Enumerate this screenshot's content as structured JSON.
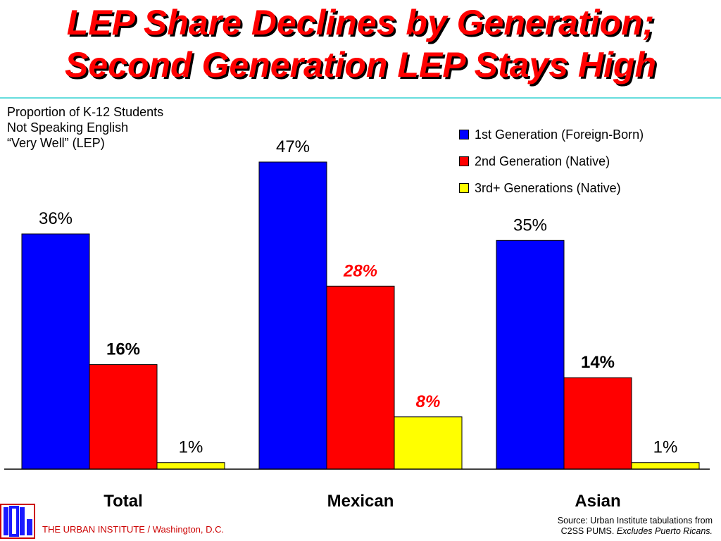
{
  "header": {
    "title_line1": "LEP Share Declines by Generation;",
    "title_line2": "Second Generation LEP Stays High"
  },
  "chart_data": {
    "type": "bar",
    "subtitle": "Proportion of K-12 Students\nNot Speaking English\n“Very Well” (LEP)",
    "categories": [
      "Total",
      "Mexican",
      "Asian"
    ],
    "series": [
      {
        "name": "1st Generation (Foreign-Born)",
        "color": "#0000ff",
        "values": [
          36,
          47,
          35
        ],
        "labels": [
          "36%",
          "47%",
          "35%"
        ]
      },
      {
        "name": "2nd Generation (Native)",
        "color": "#ff0000",
        "values": [
          16,
          28,
          14
        ],
        "labels": [
          "16%",
          "28%",
          "14%"
        ]
      },
      {
        "name": "3rd+ Generations (Native)",
        "color": "#ffff00",
        "values": [
          1,
          8,
          1
        ],
        "labels": [
          "1%",
          "8%",
          "1%"
        ]
      }
    ],
    "label_styles": [
      [
        "normal",
        "bold",
        "normal"
      ],
      [
        "normal",
        "bold-italic-red",
        "bold-italic-red"
      ],
      [
        "normal",
        "bold",
        "normal"
      ]
    ],
    "ylim": [
      0,
      47
    ],
    "legend_position": "top-right",
    "grid": false
  },
  "footer": {
    "org": "THE URBAN INSTITUTE / Washington, D.C.",
    "source_line1": "Source:  Urban Institute tabulations from",
    "source_line2": "C2SS PUMS.",
    "source_note": "Excludes Puerto Ricans."
  }
}
